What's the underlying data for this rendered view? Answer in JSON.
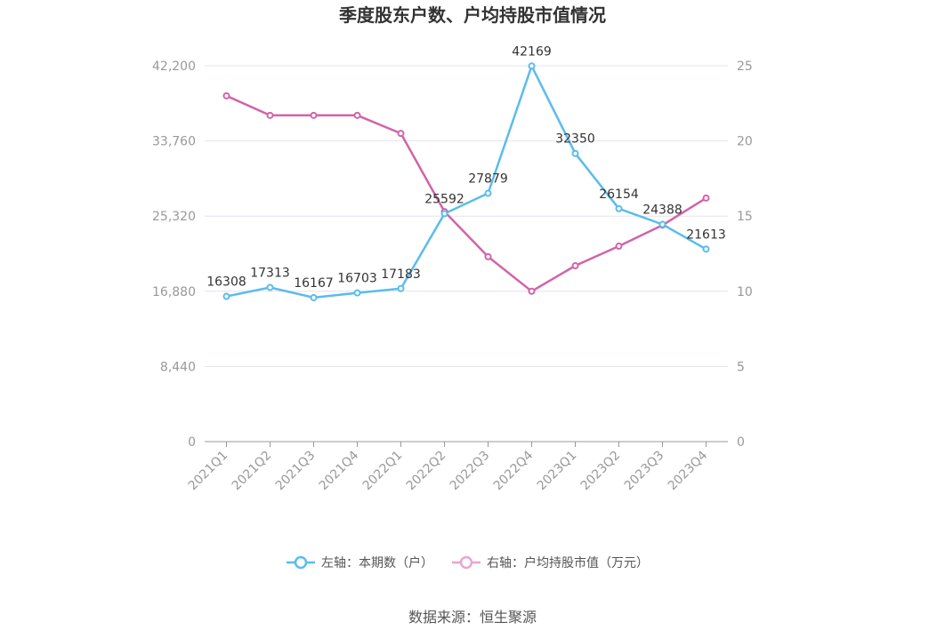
{
  "chart_data": {
    "type": "line",
    "title": "季度股东户数、户均持股市值情况",
    "categories": [
      "2021Q1",
      "2021Q2",
      "2021Q3",
      "2021Q4",
      "2022Q1",
      "2022Q2",
      "2022Q3",
      "2022Q4",
      "2023Q1",
      "2023Q2",
      "2023Q3",
      "2023Q4"
    ],
    "y_left": {
      "ticks": [
        "0",
        "8,440",
        "16,880",
        "25,320",
        "33,760",
        "42,200"
      ],
      "ylim": [
        0,
        42200
      ]
    },
    "y_right": {
      "ticks": [
        "0",
        "5",
        "10",
        "15",
        "20",
        "25"
      ],
      "ylim": [
        0,
        25
      ]
    },
    "series": [
      {
        "name": "左轴：本期数（户）",
        "axis": "left",
        "color": "#5bbcec",
        "values": [
          16308,
          17313,
          16167,
          16703,
          17183,
          25592,
          27879,
          42169,
          32350,
          26154,
          24388,
          21613
        ],
        "labels": [
          "16308",
          "17313",
          "16167",
          "16703",
          "17183",
          "25592",
          "27879",
          "42169",
          "32350",
          "26154",
          "24388",
          "21613"
        ]
      },
      {
        "name": "右轴：户均持股市值（万元）",
        "axis": "right",
        "color": "#d264a8",
        "values": [
          23.0,
          21.7,
          21.7,
          21.7,
          20.5,
          15.3,
          12.3,
          10.0,
          11.7,
          13.0,
          14.4,
          16.2
        ]
      }
    ],
    "grid": true,
    "legend_position": "bottom"
  },
  "source_text": "数据来源：恒生聚源"
}
